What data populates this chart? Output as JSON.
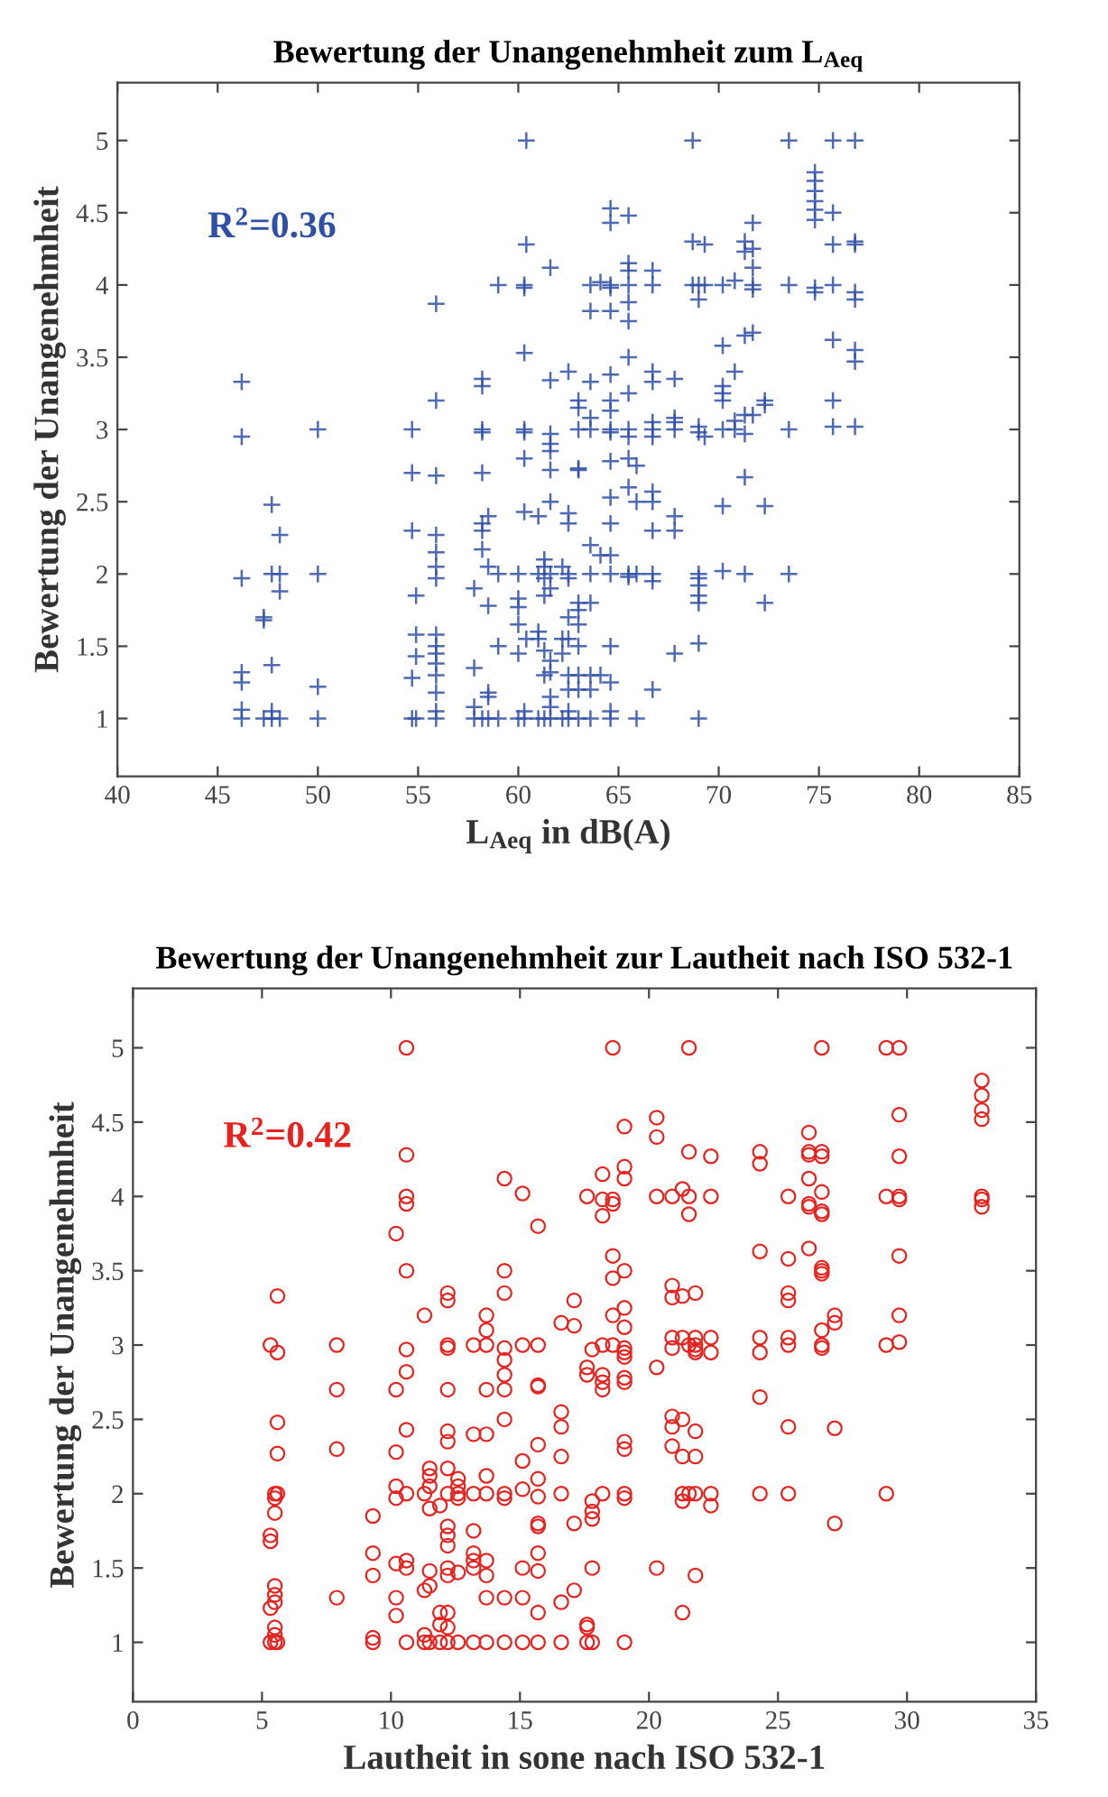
{
  "chart_data": [
    {
      "type": "scatter",
      "title": "Bewertung der Unangenehmheit zum L$_{Aeq}$",
      "xlabel": "L$_{Aeq}$ in dB(A)",
      "ylabel": "Bewertung der Unangenehmheit",
      "annotations": [
        "R$^{2}$=0.36"
      ],
      "marker": "cross",
      "xlim": [
        40,
        85
      ],
      "xticks": [
        40,
        45,
        50,
        55,
        60,
        65,
        70,
        75,
        80,
        85
      ],
      "ylim": [
        0.6,
        5.4
      ],
      "yticks": [
        1,
        1.5,
        2,
        2.5,
        3,
        3.5,
        4,
        4.5,
        5
      ],
      "series": [
        {
          "color": "#3050a8",
          "x": [
            46.2,
            46.2,
            46.2,
            46.2,
            46.2,
            46.2,
            46.2,
            47.3,
            47.3,
            47.3,
            47.7,
            47.7,
            47.7,
            47.7,
            47.7,
            48.1,
            48.1,
            48.1,
            48.1,
            50,
            50,
            50,
            50,
            54.7,
            54.7,
            54.7,
            54.7,
            54.7,
            54.9,
            54.9,
            54.9,
            54.9,
            55.9,
            55.9,
            55.9,
            55.9,
            55.9,
            55.9,
            55.9,
            55.9,
            55.9,
            55.9,
            55.9,
            55.9,
            55.9,
            55.9,
            55.9,
            57.8,
            57.8,
            57.8,
            57.8,
            58.2,
            58.2,
            58.2,
            58.2,
            58.2,
            58.2,
            58.2,
            58.2,
            58.2,
            58.5,
            58.5,
            58.5,
            58.5,
            58.5,
            58.5,
            59,
            59,
            59,
            59,
            60,
            60,
            60,
            60,
            60,
            60,
            60.3,
            60.3,
            60.3,
            60.3,
            60.3,
            60.3,
            60.3,
            60.3,
            60.3,
            60.4,
            60.4,
            60.4,
            61,
            61,
            61,
            61,
            61,
            61.3,
            61.3,
            61.3,
            61.3,
            61.3,
            61.3,
            61.3,
            61.6,
            61.6,
            61.6,
            61.6,
            61.6,
            61.6,
            61.6,
            61.6,
            61.6,
            61.6,
            61.6,
            61.6,
            61.6,
            61.6,
            62.2,
            62.2,
            62.2,
            62.2,
            62.5,
            62.5,
            62.5,
            62.5,
            62.5,
            62.5,
            62.5,
            62.5,
            62.5,
            62.5,
            62.5,
            63,
            63,
            63,
            63,
            63,
            63,
            63,
            63,
            63,
            63,
            63,
            63,
            63.6,
            63.6,
            63.6,
            63.6,
            63.6,
            63.6,
            63.6,
            63.6,
            63.6,
            63.6,
            63.6,
            64.1,
            64.1,
            64.1,
            64.6,
            64.6,
            64.6,
            64.6,
            64.6,
            64.6,
            64.6,
            64.6,
            64.6,
            64.6,
            64.6,
            64.6,
            64.6,
            64.6,
            64.6,
            64.6,
            64.6,
            64.6,
            64.6,
            65.5,
            65.5,
            65.5,
            65.5,
            65.5,
            65.5,
            65.5,
            65.5,
            65.5,
            65.5,
            65.5,
            65.5,
            65.5,
            65.5,
            65.9,
            65.9,
            65.9,
            65.9,
            66.7,
            66.7,
            66.7,
            66.7,
            66.7,
            66.7,
            66.7,
            66.7,
            66.7,
            66.7,
            66.7,
            66.7,
            66.7,
            67.8,
            67.8,
            67.8,
            67.8,
            67.8,
            67.8,
            67.8,
            68.7,
            68.7,
            68.7,
            69,
            69,
            69,
            69,
            69,
            69,
            69,
            69,
            69,
            69,
            69,
            69.3,
            69.3,
            69.3,
            70.2,
            70.2,
            70.2,
            70.2,
            70.2,
            70.2,
            70.2,
            70.2,
            70.8,
            70.8,
            70.8,
            70.8,
            71.3,
            71.3,
            71.3,
            71.3,
            71.3,
            71.3,
            71.3,
            71.7,
            71.7,
            71.7,
            71.7,
            71.7,
            71.7,
            71.7,
            72.3,
            72.3,
            72.3,
            72.3,
            73.5,
            73.5,
            73.5,
            73.5,
            74.8,
            74.8,
            74.8,
            74.8,
            74.8,
            74.8,
            74.8,
            74.8,
            75.7,
            75.7,
            75.7,
            75.7,
            75.7,
            75.7,
            75.7,
            76.8,
            76.8,
            76.8,
            76.8,
            76.8,
            76.8,
            76.8,
            76.8
          ],
          "values": [
            3.33,
            2.95,
            1.97,
            1.32,
            1.25,
            1.06,
            1.0,
            1.7,
            1.68,
            1.0,
            2.48,
            1.37,
            2.0,
            1.05,
            1.0,
            2.27,
            2.0,
            1.88,
            1.0,
            3.0,
            2.0,
            1.22,
            1.0,
            3.0,
            2.7,
            2.3,
            1.28,
            1.0,
            1.85,
            1.58,
            1.43,
            1.0,
            3.87,
            3.2,
            2.68,
            2.27,
            2.15,
            2.05,
            1.97,
            1.58,
            1.5,
            1.45,
            1.38,
            1.3,
            1.18,
            1.05,
            1.0,
            1.9,
            1.35,
            1.08,
            1.0,
            3.35,
            3.3,
            3.0,
            2.98,
            2.7,
            2.35,
            2.3,
            2.17,
            1.0,
            2.4,
            2.05,
            1.78,
            1.18,
            1.15,
            1.0,
            4.0,
            2.0,
            1.5,
            1.0,
            2.0,
            1.83,
            1.77,
            1.65,
            1.45,
            1.0,
            4.0,
            3.98,
            3.53,
            3.0,
            2.98,
            2.8,
            2.43,
            1.05,
            1.0,
            5.0,
            4.28,
            1.55,
            2.4,
            2.0,
            1.6,
            1.55,
            1.0,
            2.1,
            2.05,
            1.97,
            1.85,
            1.47,
            1.3,
            1.0,
            4.12,
            3.34,
            2.97,
            2.9,
            2.85,
            2.72,
            2.5,
            2.0,
            1.9,
            1.4,
            1.32,
            1.15,
            1.08,
            1.0,
            2.05,
            1.55,
            1.45,
            1.0,
            3.4,
            2.42,
            2.35,
            2.0,
            1.97,
            1.7,
            1.55,
            1.3,
            1.2,
            1.05,
            1.0,
            3.2,
            3.15,
            3.0,
            2.73,
            2.72,
            1.8,
            1.75,
            1.65,
            1.5,
            1.3,
            1.2,
            1.0,
            4.0,
            3.82,
            3.33,
            3.08,
            3.0,
            2.2,
            2.0,
            1.8,
            1.3,
            1.2,
            1.0,
            4.02,
            2.13,
            1.3,
            4.53,
            4.43,
            4.0,
            3.98,
            3.82,
            3.38,
            3.2,
            3.13,
            3.0,
            2.98,
            2.78,
            2.53,
            2.35,
            2.13,
            2.0,
            1.5,
            1.25,
            1.05,
            1.0,
            4.48,
            4.15,
            4.1,
            4.0,
            3.88,
            3.75,
            3.5,
            3.25,
            3.0,
            2.95,
            2.8,
            2.6,
            2.0,
            1.98,
            2.75,
            2.5,
            2.0,
            1.0,
            4.1,
            4.0,
            3.4,
            3.33,
            3.05,
            3.0,
            2.95,
            2.57,
            2.5,
            2.3,
            2.0,
            1.95,
            1.2,
            3.35,
            3.08,
            3.05,
            3.0,
            2.4,
            2.3,
            1.45,
            5.0,
            4.3,
            4.0,
            4.0,
            3.9,
            3.02,
            2.98,
            2.0,
            1.97,
            1.92,
            1.85,
            1.8,
            1.52,
            1.0,
            4.28,
            4.0,
            2.95,
            4.0,
            3.58,
            3.3,
            3.25,
            3.2,
            3.0,
            2.47,
            2.02,
            4.03,
            3.4,
            3.06,
            3.0,
            4.3,
            4.23,
            3.65,
            3.1,
            2.97,
            2.67,
            2.0,
            4.43,
            4.25,
            4.12,
            4.0,
            3.97,
            3.67,
            3.1,
            3.2,
            3.17,
            2.47,
            1.8,
            5.0,
            4.0,
            3.0,
            2.0,
            4.78,
            4.72,
            4.65,
            4.58,
            4.52,
            4.45,
            3.98,
            3.95,
            5.0,
            4.5,
            4.28,
            4.0,
            3.62,
            3.2,
            3.02,
            5.0,
            4.3,
            4.28,
            3.95,
            3.9,
            3.55,
            3.47,
            3.02
          ]
        }
      ]
    },
    {
      "type": "scatter",
      "title": "Bewertung der Unangenehmheit zur Lautheit nach ISO 532-1",
      "xlabel": "Lautheit in sone nach ISO 532-1",
      "ylabel": "Bewertung der Unangenehmheit",
      "annotations": [
        "R$^{2}$=0.42"
      ],
      "marker": "circle",
      "xlim": [
        0,
        35
      ],
      "xticks": [
        0,
        5,
        10,
        15,
        20,
        25,
        30,
        35
      ],
      "ylim": [
        0.6,
        5.4
      ],
      "yticks": [
        1,
        1.5,
        2,
        2.5,
        3,
        3.5,
        4,
        4.5,
        5
      ],
      "series": [
        {
          "color": "#e8221e",
          "x": [
            5.33,
            5.33,
            5.33,
            5.33,
            5.33,
            5.5,
            5.5,
            5.5,
            5.5,
            5.5,
            5.5,
            5.5,
            5.5,
            5.5,
            5.6,
            5.6,
            5.6,
            5.6,
            5.6,
            5.6,
            7.9,
            7.9,
            7.9,
            7.9,
            9.3,
            9.3,
            9.3,
            9.3,
            9.3,
            10.2,
            10.2,
            10.2,
            10.2,
            10.2,
            10.2,
            10.2,
            10.2,
            10.6,
            10.6,
            10.6,
            10.6,
            10.6,
            10.6,
            10.6,
            10.6,
            10.6,
            10.6,
            10.6,
            10.6,
            11.3,
            11.3,
            11.3,
            11.3,
            11.3,
            11.5,
            11.5,
            11.5,
            11.5,
            11.5,
            11.5,
            11.5,
            11.9,
            11.9,
            11.9,
            11.9,
            12.2,
            12.2,
            12.2,
            12.2,
            12.2,
            12.2,
            12.2,
            12.2,
            12.2,
            12.2,
            12.2,
            12.2,
            12.2,
            12.2,
            12.2,
            12.2,
            12.2,
            12.6,
            12.6,
            12.6,
            12.6,
            12.6,
            12.6,
            13.2,
            13.2,
            13.2,
            13.2,
            13.2,
            13.2,
            13.2,
            13.2,
            13.7,
            13.7,
            13.7,
            13.7,
            13.7,
            13.7,
            13.7,
            13.7,
            13.7,
            13.7,
            13.7,
            14.4,
            14.4,
            14.4,
            14.4,
            14.4,
            14.4,
            14.4,
            14.4,
            14.4,
            14.4,
            14.4,
            14.4,
            15.1,
            15.1,
            15.1,
            15.1,
            15.1,
            15.1,
            15.1,
            15.7,
            15.7,
            15.7,
            15.7,
            15.7,
            15.7,
            15.7,
            15.7,
            15.7,
            15.7,
            15.7,
            15.7,
            15.7,
            16.6,
            16.6,
            16.6,
            16.6,
            16.6,
            16.6,
            16.6,
            17.1,
            17.1,
            17.1,
            17.1,
            17.6,
            17.6,
            17.6,
            17.6,
            17.6,
            17.6,
            17.8,
            17.8,
            17.8,
            17.8,
            17.8,
            17.8,
            18.2,
            18.2,
            18.2,
            18.2,
            18.2,
            18.2,
            18.2,
            18.2,
            18.6,
            18.6,
            18.6,
            18.6,
            18.6,
            18.6,
            18.6,
            19.05,
            19.05,
            19.05,
            19.05,
            19.05,
            19.05,
            19.05,
            19.05,
            19.05,
            19.05,
            19.05,
            19.05,
            19.05,
            19.05,
            19.05,
            19.05,
            20.3,
            20.3,
            20.3,
            20.3,
            20.3,
            20.9,
            20.9,
            20.9,
            20.9,
            20.9,
            20.9,
            20.9,
            20.9,
            21.3,
            21.3,
            21.3,
            21.3,
            21.3,
            21.3,
            21.3,
            21.3,
            21.55,
            21.55,
            21.55,
            21.55,
            21.55,
            21.55,
            21.8,
            21.8,
            21.8,
            21.8,
            21.8,
            21.8,
            21.8,
            21.8,
            21.8,
            22.4,
            22.4,
            22.4,
            22.4,
            22.4,
            22.4,
            24.3,
            24.3,
            24.3,
            24.3,
            24.3,
            24.3,
            24.3,
            25.4,
            25.4,
            25.4,
            25.4,
            25.4,
            25.4,
            25.4,
            25.4,
            26.2,
            26.2,
            26.2,
            26.2,
            26.2,
            26.2,
            26.2,
            26.7,
            26.7,
            26.7,
            26.7,
            26.7,
            26.7,
            26.7,
            26.7,
            26.7,
            26.7,
            26.7,
            26.7,
            27.2,
            27.2,
            27.2,
            27.2,
            29.2,
            29.2,
            29.2,
            29.2,
            29.7,
            29.7,
            29.7,
            29.7,
            29.7,
            29.7,
            29.7,
            29.7,
            32.9,
            32.9,
            32.9,
            32.9,
            32.9,
            32.9,
            32.9
          ],
          "values": [
            3.0,
            1.72,
            1.68,
            1.23,
            1.0,
            2.0,
            1.97,
            1.87,
            1.38,
            1.32,
            1.27,
            1.1,
            1.05,
            1.0,
            3.33,
            2.95,
            2.48,
            2.27,
            2.0,
            1.0,
            3.0,
            2.7,
            2.3,
            1.3,
            1.85,
            1.6,
            1.45,
            1.03,
            1.0,
            3.75,
            2.7,
            2.28,
            2.05,
            1.97,
            1.53,
            1.3,
            1.18,
            5.0,
            4.28,
            4.0,
            3.95,
            3.5,
            2.97,
            2.82,
            2.43,
            2.0,
            1.55,
            1.5,
            1.0,
            3.2,
            2.0,
            1.35,
            1.05,
            1.0,
            2.17,
            2.12,
            2.05,
            1.9,
            1.48,
            1.38,
            1.0,
            1.92,
            1.2,
            1.12,
            1.0,
            3.35,
            3.3,
            3.0,
            2.98,
            2.7,
            2.42,
            2.35,
            2.17,
            2.0,
            1.78,
            1.72,
            1.65,
            1.5,
            1.45,
            1.2,
            1.1,
            1.0,
            2.1,
            2.05,
            2.0,
            1.97,
            1.47,
            1.0,
            3.0,
            2.4,
            2.0,
            1.75,
            1.6,
            1.55,
            1.5,
            1.0,
            3.2,
            3.1,
            3.0,
            2.7,
            2.4,
            2.12,
            2.0,
            1.55,
            1.45,
            1.3,
            1.0,
            4.12,
            3.5,
            3.35,
            2.98,
            2.9,
            2.8,
            2.7,
            2.5,
            2.0,
            1.97,
            1.3,
            1.0,
            4.02,
            3.0,
            2.22,
            2.03,
            1.5,
            1.3,
            1.0,
            3.8,
            3.0,
            2.73,
            2.72,
            2.33,
            2.1,
            1.98,
            1.8,
            1.78,
            1.6,
            1.48,
            1.2,
            1.0,
            3.15,
            2.55,
            2.45,
            2.25,
            2.0,
            1.27,
            1.0,
            3.3,
            3.13,
            1.8,
            1.35,
            4.0,
            2.85,
            2.8,
            1.12,
            1.1,
            1.0,
            2.97,
            1.95,
            1.88,
            1.83,
            1.5,
            1.0,
            4.15,
            3.98,
            3.87,
            3.0,
            2.8,
            2.75,
            2.7,
            2.0,
            5.0,
            3.98,
            3.95,
            3.6,
            3.45,
            3.2,
            3.0,
            4.47,
            4.2,
            4.12,
            3.5,
            3.25,
            3.12,
            2.98,
            2.95,
            2.92,
            2.78,
            2.75,
            2.35,
            2.3,
            2.0,
            1.97,
            1.0,
            4.53,
            4.4,
            4.0,
            2.85,
            1.5,
            4.0,
            3.4,
            3.32,
            3.05,
            2.98,
            2.52,
            2.45,
            2.32,
            4.05,
            3.33,
            3.05,
            2.5,
            2.25,
            2.0,
            1.95,
            1.2,
            5.0,
            4.3,
            4.0,
            3.88,
            3.0,
            2.0,
            3.35,
            3.05,
            3.0,
            2.97,
            2.95,
            2.42,
            2.25,
            2.0,
            1.45,
            4.27,
            4.0,
            3.05,
            2.95,
            2.0,
            1.92,
            4.3,
            4.22,
            3.63,
            3.05,
            2.95,
            2.65,
            2.0,
            4.0,
            3.58,
            3.35,
            3.3,
            3.05,
            3.0,
            2.45,
            2.0,
            4.43,
            4.3,
            4.28,
            4.12,
            3.95,
            3.93,
            3.65,
            5.0,
            4.3,
            4.27,
            4.03,
            3.9,
            3.88,
            3.52,
            3.5,
            3.48,
            3.1,
            3.0,
            2.98,
            3.2,
            3.15,
            2.44,
            1.8,
            5.0,
            4.0,
            3.0,
            2.0,
            5.0,
            4.55,
            4.27,
            4.0,
            3.98,
            3.6,
            3.2,
            3.02,
            4.78,
            4.68,
            4.58,
            4.52,
            4.0,
            3.98,
            3.93
          ]
        }
      ]
    }
  ]
}
